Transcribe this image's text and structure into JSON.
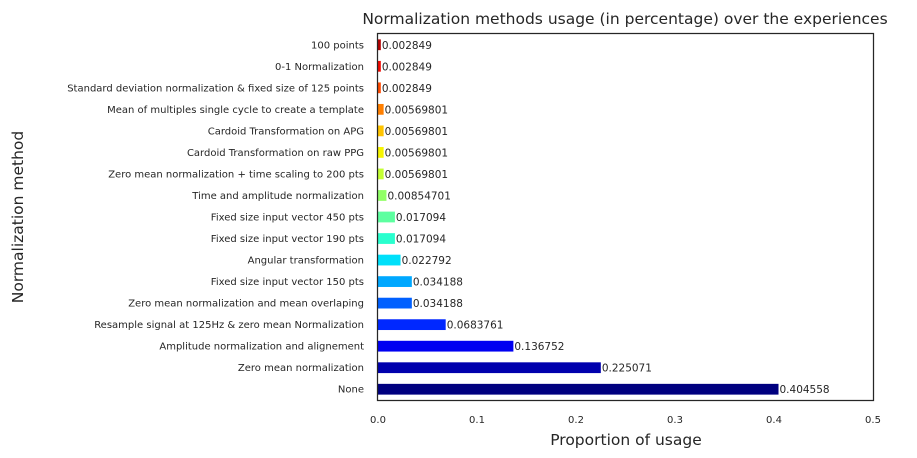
{
  "chart_data": {
    "type": "bar",
    "orientation": "horizontal",
    "title": "Normalization methods usage (in percentage) over the experiences",
    "xlabel": "Proportion of usage",
    "ylabel": "Normalization method",
    "xlim": [
      0,
      0.5
    ],
    "xticks": [
      "0.0",
      "0.1",
      "0.2",
      "0.3",
      "0.4",
      "0.5"
    ],
    "grid": false,
    "legend": "none",
    "colormap": "jet",
    "categories": [
      "None",
      "Zero mean normalization",
      "Amplitude normalization and alignement",
      "Resample signal at 125Hz & zero mean Normalization",
      "Zero mean normalization and mean overlaping",
      "Fixed size input vector 150 pts",
      "Angular transformation",
      "Fixed size input vector 190 pts",
      "Fixed size input vector 450 pts",
      "Time and amplitude normalization",
      "Zero mean normalization + time scaling to 200 pts",
      "Cardoid Transformation on raw PPG",
      "Cardoid Transformation on APG",
      "Mean of multiples single cycle to create a template",
      "Standard deviation normalization & fixed size of 125 points",
      "0-1 Normalization",
      "100 points"
    ],
    "values": [
      0.404558,
      0.225071,
      0.136752,
      0.0683761,
      0.034188,
      0.034188,
      0.022792,
      0.017094,
      0.017094,
      0.00854701,
      0.00569801,
      0.00569801,
      0.00569801,
      0.00569801,
      0.002849,
      0.002849,
      0.002849
    ],
    "value_labels": [
      "0.404558",
      "0.225071",
      "0.136752",
      "0.0683761",
      "0.034188",
      "0.034188",
      "0.022792",
      "0.017094",
      "0.017094",
      "0.00854701",
      "0.00569801",
      "0.00569801",
      "0.00569801",
      "0.00569801",
      "0.002849",
      "0.002849",
      "0.002849"
    ],
    "colors": [
      "#00007f",
      "#0000ad",
      "#0000f1",
      "#0028ff",
      "#0060ff",
      "#00a8ff",
      "#00e0fa",
      "#29ffce",
      "#5dffa0",
      "#91ff66",
      "#c4ff33",
      "#f7f500",
      "#ffc400",
      "#ff7f00",
      "#ff4a00",
      "#f10800",
      "#b20000"
    ]
  }
}
